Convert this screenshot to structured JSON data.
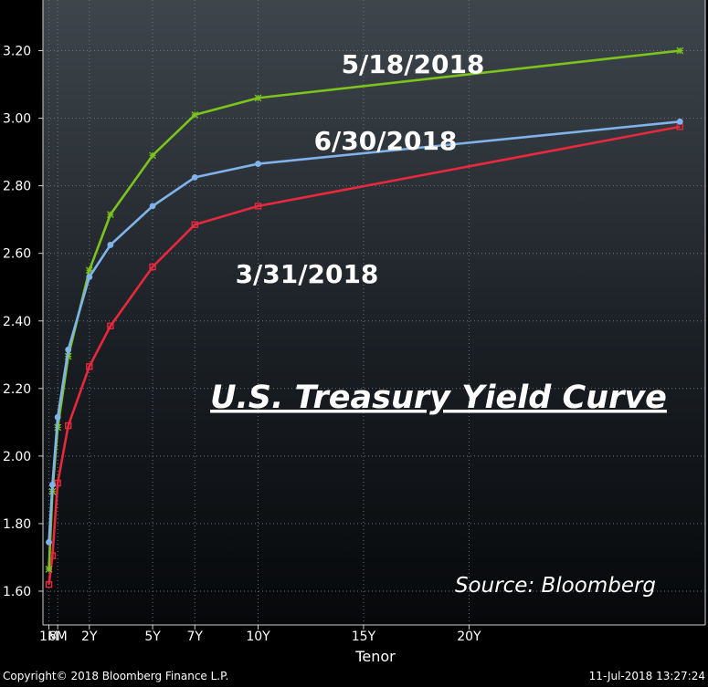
{
  "chart_data": {
    "type": "line",
    "title": "U.S. Treasury Yield Curve",
    "source": "Source:  Bloomberg",
    "xlabel": "Tenor",
    "ylabel": "",
    "ylim": [
      1.5,
      3.35
    ],
    "grid": true,
    "x_ticks": [
      {
        "label": "1M",
        "x": 0.0833
      },
      {
        "label": "6M",
        "x": 0.5
      },
      {
        "label": "2Y",
        "x": 2
      },
      {
        "label": "5Y",
        "x": 5
      },
      {
        "label": "7Y",
        "x": 7
      },
      {
        "label": "10Y",
        "x": 10
      },
      {
        "label": "15Y",
        "x": 15
      },
      {
        "label": "20Y",
        "x": 20
      }
    ],
    "xlim": [
      -0.2,
      31.2
    ],
    "y_ticks": [
      1.6,
      1.8,
      2.0,
      2.2,
      2.4,
      2.6,
      2.8,
      3.0,
      3.2
    ],
    "y_tick_labels": [
      "1.60",
      "1.80",
      "2.00",
      "2.20",
      "2.40",
      "2.60",
      "2.80",
      "3.00",
      "3.20"
    ],
    "series": [
      {
        "name": "3/31/2018",
        "color": "#e8283c",
        "marker": "square",
        "x": [
          0.0833,
          0.25,
          0.5,
          1,
          2,
          3,
          5,
          7,
          10,
          30
        ],
        "y": [
          1.62,
          1.705,
          1.92,
          2.09,
          2.265,
          2.385,
          2.56,
          2.685,
          2.74,
          2.975
        ]
      },
      {
        "name": "5/18/2018",
        "color": "#7cc41c",
        "marker": "star",
        "x": [
          0.0833,
          0.25,
          0.5,
          1,
          2,
          3,
          5,
          7,
          10,
          30
        ],
        "y": [
          1.665,
          1.895,
          2.085,
          2.295,
          2.55,
          2.715,
          2.89,
          3.01,
          3.06,
          3.2
        ]
      },
      {
        "name": "6/30/2018",
        "color": "#7fb3ea",
        "marker": "circle",
        "x": [
          0.0833,
          0.25,
          0.5,
          1,
          2,
          3,
          5,
          7,
          10,
          30
        ],
        "y": [
          1.745,
          1.915,
          2.115,
          2.315,
          2.53,
          2.625,
          2.74,
          2.825,
          2.865,
          2.99
        ]
      }
    ]
  },
  "footer": {
    "copyright": "Copyright© 2018 Bloomberg Finance L.P.",
    "timestamp": "11-Jul-2018 13:27:24"
  }
}
